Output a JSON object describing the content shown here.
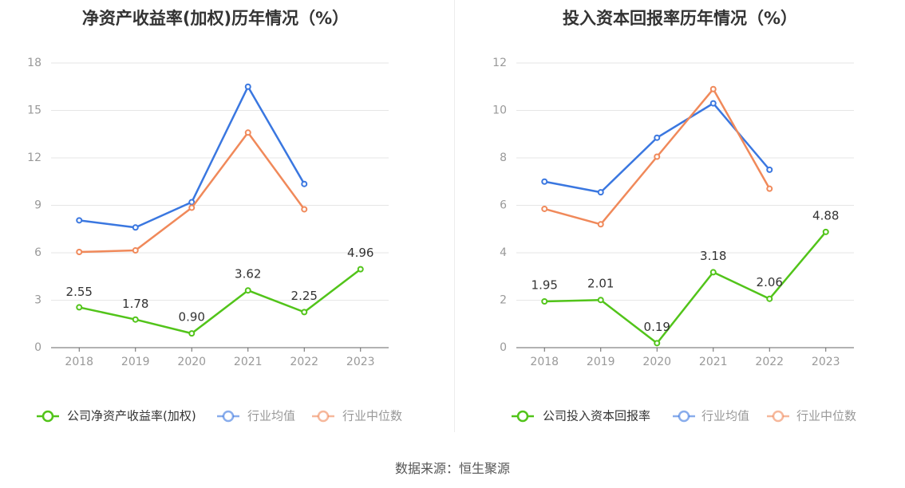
{
  "chart_data": [
    {
      "type": "line",
      "title": "净资产收益率(加权)历年情况（%）",
      "categories": [
        "2018",
        "2019",
        "2020",
        "2021",
        "2022",
        "2023"
      ],
      "ylim": [
        0,
        18
      ],
      "yticks": [
        "0",
        "3",
        "6",
        "9",
        "12",
        "15",
        "18"
      ],
      "grid": true,
      "legend_position": "bottom",
      "series": [
        {
          "name": "公司净资产收益率(加权)",
          "color": "#52c41a",
          "values": [
            2.55,
            1.78,
            0.9,
            3.62,
            2.25,
            4.96
          ],
          "labels": [
            "2.55",
            "1.78",
            "0.90",
            "3.62",
            "2.25",
            "4.96"
          ]
        },
        {
          "name": "行业均值",
          "color": "#3a77e0",
          "values": [
            8.05,
            7.6,
            9.2,
            16.5,
            10.35,
            null
          ]
        },
        {
          "name": "行业中位数",
          "color": "#f0895a",
          "values": [
            6.05,
            6.15,
            8.85,
            13.6,
            8.75,
            null
          ]
        }
      ],
      "legend": [
        "公司净资产收益率(加权)",
        "行业均值",
        "行业中位数"
      ]
    },
    {
      "type": "line",
      "title": "投入资本回报率历年情况（%）",
      "categories": [
        "2018",
        "2019",
        "2020",
        "2021",
        "2022",
        "2023"
      ],
      "ylim": [
        0,
        12
      ],
      "yticks": [
        "0",
        "2",
        "4",
        "6",
        "8",
        "10",
        "12"
      ],
      "grid": true,
      "legend_position": "bottom",
      "series": [
        {
          "name": "公司投入资本回报率",
          "color": "#52c41a",
          "values": [
            1.95,
            2.01,
            0.19,
            3.18,
            2.06,
            4.88
          ],
          "labels": [
            "1.95",
            "2.01",
            "0.19",
            "3.18",
            "2.06",
            "4.88"
          ]
        },
        {
          "name": "行业均值",
          "color": "#3a77e0",
          "values": [
            7.0,
            6.55,
            8.85,
            10.3,
            7.5,
            null
          ]
        },
        {
          "name": "行业中位数",
          "color": "#f0895a",
          "values": [
            5.85,
            5.2,
            8.05,
            10.9,
            6.7,
            null
          ]
        }
      ],
      "legend": [
        "公司投入资本回报率",
        "行业均值",
        "行业中位数"
      ]
    }
  ],
  "footer": {
    "source": "数据来源：恒生聚源"
  }
}
